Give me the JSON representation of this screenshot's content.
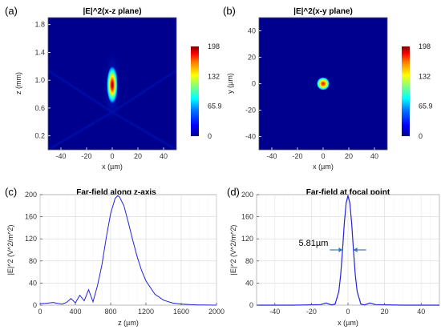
{
  "colorbar_stops": [
    "#00008f",
    "#0000ff",
    "#0080ff",
    "#00ffff",
    "#80ff80",
    "#ffff00",
    "#ff8000",
    "#ff0000",
    "#800000"
  ],
  "panel_color_bg": "#00008f",
  "line_color": "#2222dd",
  "chart_data": [
    {
      "panel_label": "(a)",
      "type": "heatmap",
      "title": "|E|^2(x-z plane)",
      "xlabel": "x (µm)",
      "ylabel": "z (mm)",
      "xlim": [
        -50,
        50
      ],
      "ylim": [
        0,
        1.9
      ],
      "xticks": [
        -40,
        -20,
        0,
        20,
        40
      ],
      "yticks": [
        0.2,
        0.6,
        1.0,
        1.4,
        1.8
      ],
      "colorbar_ticks": [
        0,
        65.9,
        132,
        198
      ],
      "colorbar_labels": [
        "0",
        "65.9",
        "132",
        "198"
      ],
      "vmax": 198,
      "focus": {
        "x": 0,
        "z": 0.93,
        "peak": 198
      }
    },
    {
      "panel_label": "(b)",
      "type": "heatmap",
      "title": "|E|^2(x-y plane)",
      "xlabel": "x (µm)",
      "ylabel": "y (µm)",
      "xlim": [
        -50,
        50
      ],
      "ylim": [
        -50,
        50
      ],
      "xticks": [
        -40,
        -20,
        0,
        20,
        40
      ],
      "yticks": [
        -40,
        -20,
        0,
        20,
        40
      ],
      "colorbar_ticks": [
        0,
        65.9,
        132,
        198
      ],
      "colorbar_labels": [
        "0",
        "65.9",
        "132",
        "198"
      ],
      "vmax": 198,
      "spot": {
        "x": 0,
        "y": 0,
        "peak": 198
      }
    },
    {
      "panel_label": "(c)",
      "type": "line",
      "title": "Far-field along z-axis",
      "xlabel": "z (µm)",
      "ylabel": "|E|^2 (V^2/m^2)",
      "xlim": [
        0,
        2000
      ],
      "ylim": [
        0,
        200
      ],
      "xticks": [
        0,
        400,
        800,
        1200,
        1600,
        2000
      ],
      "yticks": [
        0,
        40,
        80,
        120,
        160,
        200
      ],
      "grid": true,
      "x": [
        0,
        50,
        100,
        150,
        200,
        250,
        300,
        350,
        400,
        450,
        500,
        550,
        600,
        650,
        700,
        750,
        800,
        850,
        880,
        900,
        950,
        1000,
        1050,
        1100,
        1150,
        1200,
        1300,
        1400,
        1500,
        1600,
        1700,
        1800,
        2000
      ],
      "y": [
        3,
        3,
        4,
        5,
        3,
        2,
        5,
        12,
        4,
        18,
        8,
        28,
        6,
        35,
        72,
        122,
        166,
        193,
        198,
        196,
        180,
        150,
        118,
        88,
        63,
        44,
        20,
        9,
        4,
        2,
        1,
        0.5,
        0
      ]
    },
    {
      "panel_label": "(d)",
      "type": "line",
      "title": "Far-field at focal point",
      "xlabel": "x (µm)",
      "ylabel": "|E|^2 (V^2/m^2)",
      "xlim": [
        -50,
        50
      ],
      "ylim": [
        0,
        200
      ],
      "xticks": [
        -40,
        -20,
        0,
        20,
        40
      ],
      "yticks": [
        0,
        40,
        80,
        120,
        160,
        200
      ],
      "grid": true,
      "x": [
        -50,
        -30,
        -15,
        -12,
        -9,
        -7,
        -5,
        -4,
        -3,
        -2,
        -1,
        0,
        1,
        2,
        3,
        4,
        5,
        7,
        9,
        12,
        15,
        30,
        50
      ],
      "y": [
        0,
        0,
        1,
        4,
        0.5,
        2,
        25,
        55,
        100,
        148,
        185,
        198,
        185,
        148,
        100,
        55,
        25,
        2,
        0.5,
        4,
        1,
        0,
        0
      ],
      "annotation": {
        "text": "5.81µm",
        "x_left": -2.9,
        "x_right": 2.9,
        "y": 100
      }
    }
  ]
}
